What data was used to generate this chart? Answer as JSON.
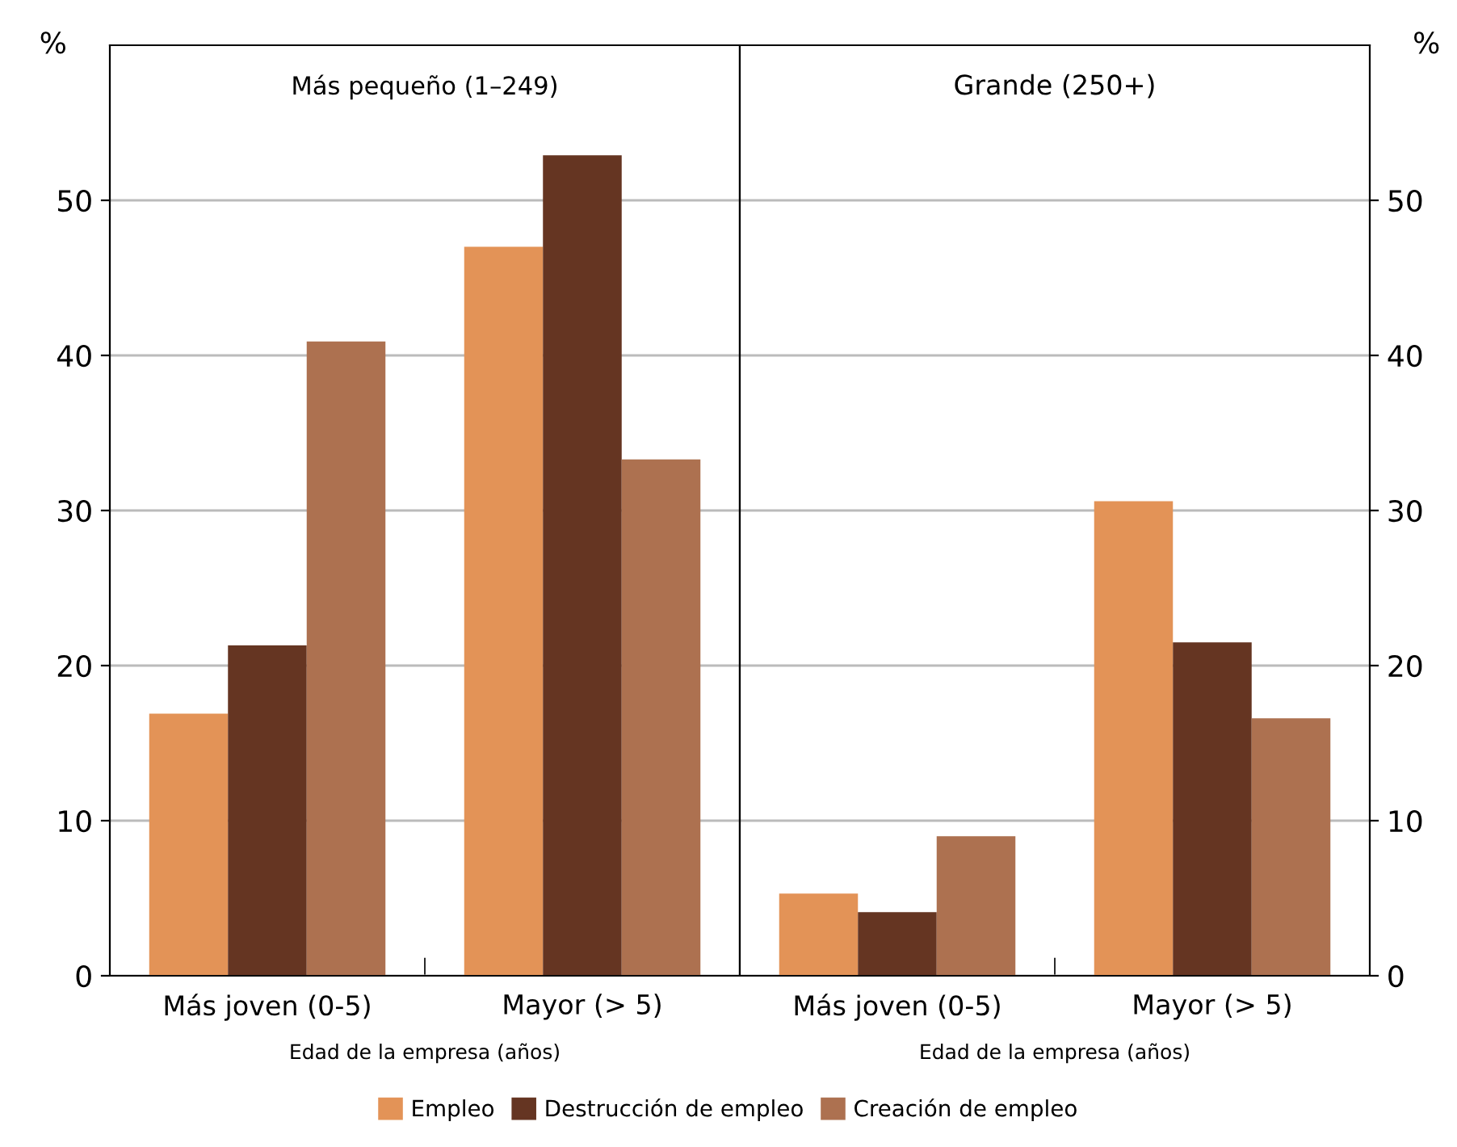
{
  "chart_data": [
    {
      "type": "bar",
      "title": "Más pequeño (1–249)",
      "xlabel": "Edad de la empresa (años)",
      "ylabel": "%",
      "categories": [
        "Más joven (0-5)",
        "Mayor (> 5)"
      ],
      "series": [
        {
          "name": "Empleo",
          "color": "#e39357",
          "values": [
            16.9,
            47.0
          ]
        },
        {
          "name": "Destrucción de empleo",
          "color": "#653522",
          "values": [
            21.3,
            52.9
          ]
        },
        {
          "name": "Creación de empleo",
          "color": "#ad7150",
          "values": [
            40.9,
            33.3
          ]
        }
      ],
      "ylim": [
        0,
        60
      ],
      "yticks": [
        0,
        10,
        20,
        30,
        40,
        50
      ],
      "grid": "y",
      "legend": "bottom"
    },
    {
      "type": "bar",
      "title": "Grande (250+)",
      "xlabel": "Edad de la empresa (años)",
      "y2label": "%",
      "categories": [
        "Más joven (0-5)",
        "Mayor (> 5)"
      ],
      "series": [
        {
          "name": "Empleo",
          "color": "#e39357",
          "axis": "y2",
          "values": [
            5.3,
            30.6
          ]
        },
        {
          "name": "Destrucción de empleo",
          "color": "#653522",
          "axis": "y2",
          "values": [
            4.1,
            21.5
          ]
        },
        {
          "name": "Creación de empleo",
          "color": "#ad7150",
          "axis": "y2",
          "values": [
            9.0,
            16.6
          ]
        }
      ],
      "y2lim": [
        0,
        60
      ],
      "y2ticks": [
        0,
        10,
        20,
        30,
        40,
        50
      ],
      "grid": "y",
      "legend": "bottom"
    }
  ]
}
